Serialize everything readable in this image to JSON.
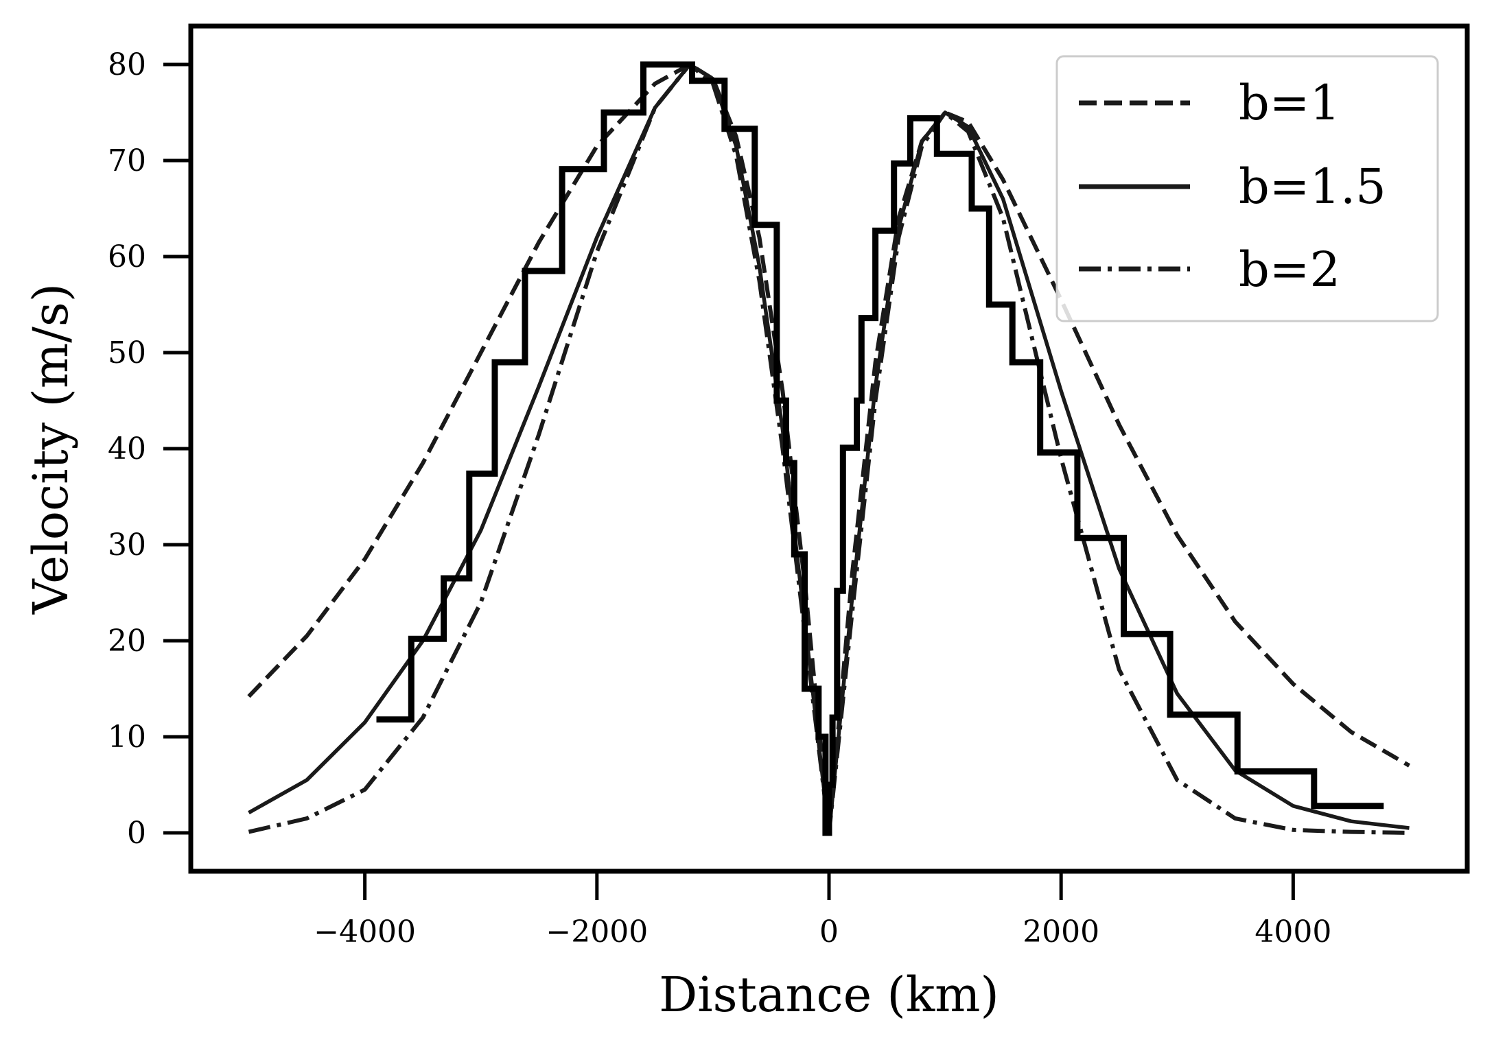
{
  "chart_data": {
    "type": "line",
    "title": "",
    "xlabel": "Distance (km)",
    "ylabel": "Velocity (m/s)",
    "xlim": [
      -5500,
      5500
    ],
    "ylim": [
      -4,
      84
    ],
    "xticks": [
      -4000,
      -2000,
      0,
      2000,
      4000
    ],
    "xtick_labels": [
      "−4000",
      "−2000",
      "0",
      "2000",
      "4000"
    ],
    "yticks": [
      0,
      10,
      20,
      30,
      40,
      50,
      60,
      70,
      80
    ],
    "ytick_labels": [
      "0",
      "10",
      "20",
      "30",
      "40",
      "50",
      "60",
      "70",
      "80"
    ],
    "grid": false,
    "legend_position": "top-right",
    "series": [
      {
        "name": "b=1",
        "style": "dashed",
        "color": "#1a1a1a",
        "x": [
          -5000,
          -4500,
          -4000,
          -3500,
          -3000,
          -2500,
          -2000,
          -1500,
          -1200,
          -1000,
          -800,
          -600,
          -400,
          -200,
          0,
          200,
          400,
          600,
          800,
          1000,
          1200,
          1500,
          2000,
          2500,
          3000,
          3500,
          4000,
          4500,
          5000
        ],
        "y": [
          14.2,
          20.5,
          28.5,
          38.5,
          50,
          61.5,
          71.5,
          78,
          80,
          78.5,
          72.5,
          62,
          46,
          25,
          0,
          27,
          49,
          64,
          72,
          75,
          74,
          68,
          55.5,
          42.5,
          31,
          22,
          15.5,
          10.5,
          7
        ]
      },
      {
        "name": "b=1.5",
        "style": "solid",
        "color": "#1a1a1a",
        "x": [
          -5000,
          -4500,
          -4000,
          -3500,
          -3000,
          -2500,
          -2000,
          -1500,
          -1200,
          -1000,
          -800,
          -600,
          -400,
          -200,
          0,
          200,
          400,
          600,
          800,
          1000,
          1200,
          1500,
          2000,
          2500,
          3000,
          3500,
          4000,
          4500,
          5000
        ],
        "y": [
          2.1,
          5.5,
          11.5,
          20,
          31.5,
          46.5,
          62,
          75.5,
          80,
          78.5,
          71.5,
          59,
          42,
          21,
          0,
          24.5,
          46.5,
          63,
          72,
          75,
          73.5,
          66,
          46,
          27.5,
          14.5,
          6.5,
          2.8,
          1.2,
          0.5
        ]
      },
      {
        "name": "b=2",
        "style": "dashdot",
        "color": "#1a1a1a",
        "x": [
          -5000,
          -4500,
          -4000,
          -3500,
          -3000,
          -2500,
          -2000,
          -1500,
          -1200,
          -1000,
          -800,
          -600,
          -400,
          -200,
          0,
          200,
          400,
          600,
          800,
          1000,
          1200,
          1500,
          2000,
          2500,
          3000,
          3500,
          4000,
          4500,
          5000
        ],
        "y": [
          0.1,
          1.5,
          4.5,
          12,
          24,
          41.5,
          60.5,
          75.5,
          80,
          78,
          70.5,
          57.5,
          40,
          20,
          0,
          23,
          45,
          62,
          71.5,
          75,
          73,
          64,
          39,
          17,
          5.5,
          1.5,
          0.3,
          0.1,
          0
        ]
      },
      {
        "name": "",
        "style": "step",
        "color": "#000000",
        "x": [
          -3900,
          -3600,
          -3600,
          -3320,
          -3320,
          -3100,
          -3100,
          -2880,
          -2880,
          -2620,
          -2620,
          -2300,
          -2300,
          -1940,
          -1940,
          -1600,
          -1600,
          -1180,
          -1180,
          -900,
          -900,
          -640,
          -640,
          -450,
          -450,
          -370,
          -370,
          -300,
          -300,
          -210,
          -210,
          -90,
          -90,
          -30,
          -30,
          0,
          0,
          30,
          30,
          70,
          70,
          120,
          120,
          240,
          240,
          280,
          280,
          400,
          400,
          560,
          560,
          700,
          700,
          930,
          930,
          1230,
          1230,
          1380,
          1380,
          1580,
          1580,
          1820,
          1820,
          2140,
          2140,
          2540,
          2540,
          2940,
          2940,
          3520,
          3520,
          4180,
          4180,
          4780
        ],
        "y": [
          11.8,
          11.8,
          20.2,
          20.2,
          26.5,
          26.5,
          37.4,
          37.4,
          49,
          49,
          58.5,
          58.5,
          69.1,
          69.1,
          75,
          75,
          80,
          80,
          78.3,
          78.3,
          73.3,
          73.3,
          63.3,
          63.3,
          45,
          45,
          38.5,
          38.5,
          29,
          29,
          15,
          15,
          10,
          10,
          0,
          0,
          5,
          5,
          12,
          12,
          25.2,
          25.2,
          40.1,
          40.1,
          45,
          45,
          53.6,
          53.6,
          62.7,
          62.7,
          69.7,
          69.7,
          74.4,
          74.4,
          70.7,
          70.7,
          65,
          65,
          55,
          55,
          49,
          49,
          39.6,
          39.6,
          30.7,
          30.7,
          20.7,
          20.7,
          12.3,
          12.3,
          6.4,
          6.4,
          2.8,
          2.8
        ]
      }
    ]
  },
  "legend": {
    "items": [
      {
        "label": "b=1",
        "style": "dashed"
      },
      {
        "label": "b=1.5",
        "style": "solid"
      },
      {
        "label": "b=2",
        "style": "dashdot"
      }
    ]
  }
}
